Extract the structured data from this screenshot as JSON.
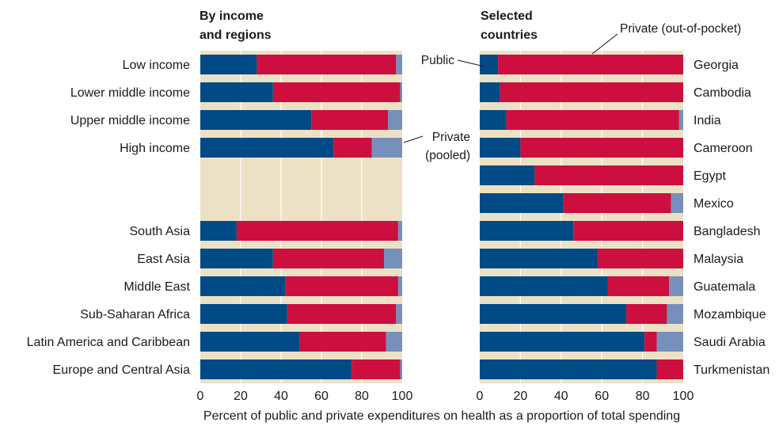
{
  "colors": {
    "public": "#004a85",
    "private_oop": "#cc0f3e",
    "private_pooled": "#7690bb",
    "background": "#ede1c5",
    "grid": "#ffffff"
  },
  "chart_data": [
    {
      "type": "bar",
      "orientation": "horizontal",
      "stacked": true,
      "title": "By income and regions",
      "title_lines": [
        "By income",
        "and regions"
      ],
      "xlim": [
        0,
        100
      ],
      "xticks": [
        "0",
        "20",
        "40",
        "60",
        "80",
        "100"
      ],
      "categories": [
        "Low income",
        "Lower middle income",
        "Upper middle income",
        "High income",
        "",
        "",
        "South Asia",
        "East Asia",
        "Middle East",
        "Sub-Saharan Africa",
        "Latin America and Caribbean",
        "Europe and Central Asia"
      ],
      "series": [
        {
          "key": "public",
          "values": [
            28,
            36,
            55,
            66,
            null,
            null,
            18,
            36,
            42,
            43,
            49,
            75
          ]
        },
        {
          "key": "private_oop",
          "values": [
            69,
            63,
            38,
            19,
            null,
            null,
            80,
            55,
            56,
            54,
            43,
            24
          ]
        },
        {
          "key": "private_pooled",
          "values": [
            3,
            1,
            7,
            15,
            null,
            null,
            2,
            9,
            2,
            3,
            8,
            1
          ]
        }
      ]
    },
    {
      "type": "bar",
      "orientation": "horizontal",
      "stacked": true,
      "title": "Selected countries",
      "title_lines": [
        "Selected",
        "countries"
      ],
      "xlim": [
        0,
        100
      ],
      "xticks": [
        "0",
        "20",
        "40",
        "60",
        "80",
        "100"
      ],
      "categories": [
        "Georgia",
        "Cambodia",
        "India",
        "Cameroon",
        "Egypt",
        "Mexico",
        "Bangladesh",
        "Malaysia",
        "Guatemala",
        "Mozambique",
        "Saudi Arabia",
        "Turkmenistan"
      ],
      "series": [
        {
          "key": "public",
          "values": [
            9,
            10,
            13,
            20,
            27,
            41,
            46,
            58,
            63,
            72,
            81,
            87
          ]
        },
        {
          "key": "private_oop",
          "values": [
            91,
            90,
            85,
            80,
            73,
            53,
            54,
            42,
            30,
            20,
            6,
            13
          ]
        },
        {
          "key": "private_pooled",
          "values": [
            0,
            0,
            2,
            0,
            0,
            6,
            0,
            0,
            7,
            8,
            13,
            0
          ]
        }
      ]
    }
  ],
  "annotations": {
    "public": "Public",
    "private_oop": "Private (out-of-pocket)",
    "private_pooled_line1": "Private",
    "private_pooled_line2": "(pooled)"
  },
  "x_axis_label": "Percent of public and private expenditures on health as a proportion of total spending"
}
